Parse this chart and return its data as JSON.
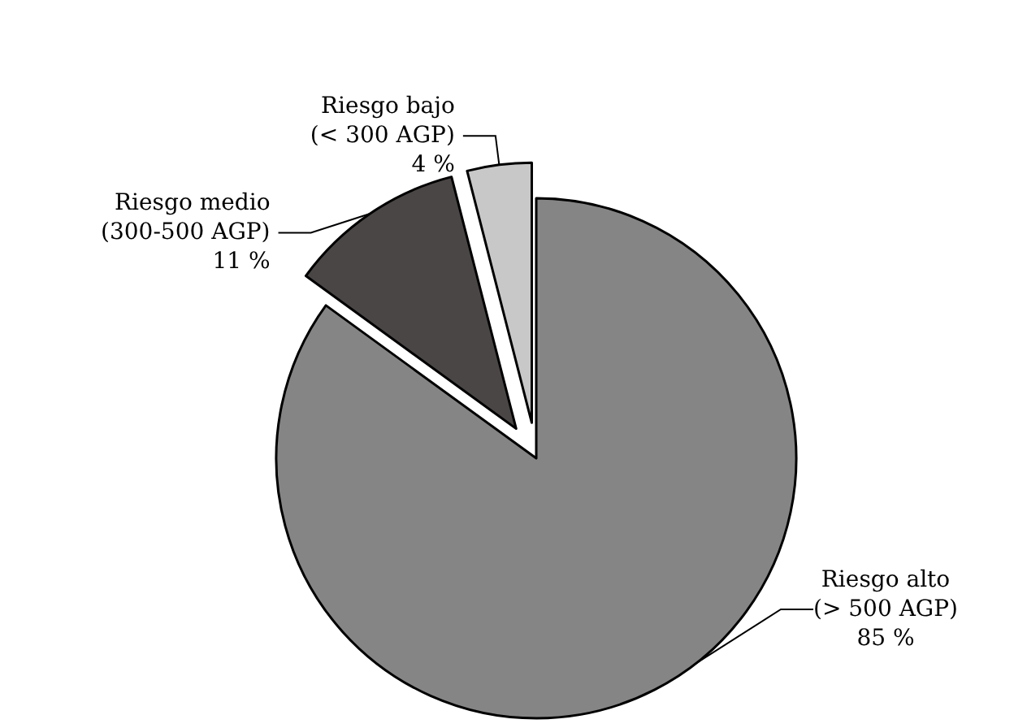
{
  "chart_data": {
    "type": "pie",
    "categories": [
      "Riesgo alto (> 500 AGP)",
      "Riesgo medio (300-500 AGP)",
      "Riesgo bajo (< 300 AGP)"
    ],
    "values": [
      85,
      11,
      4
    ],
    "colors": [
      "#858585",
      "#4b4646",
      "#c8c8c8"
    ],
    "value_labels": [
      "85 %",
      "11 %",
      "4 %"
    ]
  }
}
